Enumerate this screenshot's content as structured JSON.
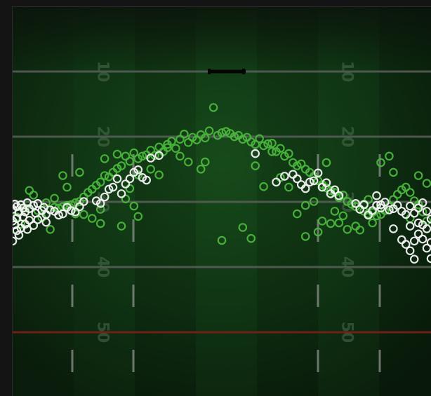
{
  "chart_data": {
    "type": "scatter",
    "title": "",
    "xlabel": "",
    "ylabel": "",
    "field": {
      "yard_line_labels": [
        {
          "text": "10",
          "yard": 10
        },
        {
          "text": "20",
          "yard": 20
        },
        {
          "text": "30",
          "yard": 30
        },
        {
          "text": "40",
          "yard": 40
        },
        {
          "text": "50",
          "yard": 50
        }
      ],
      "highlight_yard": 40,
      "colors": {
        "turf": "#0f2a12",
        "turf_dark": "#0b1a0c",
        "line": "#5b5f5b",
        "highlight_line": "#7a1f1a",
        "hash": "#8c918c",
        "frame": "#1b1b1b"
      }
    },
    "xlim": [
      0,
      100
    ],
    "ylim": [
      0,
      60
    ],
    "series": [
      {
        "color": "#4ab53c",
        "points": [
          [
            48,
            15.5
          ],
          [
            50,
            19.4
          ],
          [
            51,
            19.2
          ],
          [
            49,
            19.8
          ],
          [
            47,
            19.1
          ],
          [
            52,
            19.5
          ],
          [
            53,
            20.0
          ],
          [
            46,
            20.2
          ],
          [
            45,
            19.7
          ],
          [
            54,
            19.8
          ],
          [
            55,
            20.4
          ],
          [
            44,
            20.5
          ],
          [
            56,
            20.1
          ],
          [
            43,
            20.1
          ],
          [
            57,
            20.8
          ],
          [
            42,
            20.9
          ],
          [
            41,
            19.6
          ],
          [
            40,
            20.4
          ],
          [
            58,
            21.2
          ],
          [
            59,
            20.3
          ],
          [
            60,
            21.4
          ],
          [
            61,
            21.1
          ],
          [
            62,
            21.0
          ],
          [
            39,
            21.8
          ],
          [
            38,
            20.7
          ],
          [
            37,
            21.7
          ],
          [
            36,
            22.3
          ],
          [
            35,
            21.6
          ],
          [
            34,
            22.9
          ],
          [
            33,
            22.1
          ],
          [
            32,
            22.8
          ],
          [
            31,
            23.0
          ],
          [
            30,
            23.4
          ],
          [
            29,
            22.5
          ],
          [
            28,
            23.8
          ],
          [
            27,
            23.0
          ],
          [
            26,
            24.5
          ],
          [
            25,
            24.9
          ],
          [
            24,
            25.5
          ],
          [
            23,
            26.2
          ],
          [
            22,
            26.0
          ],
          [
            21,
            27.0
          ],
          [
            20,
            27.5
          ],
          [
            19,
            28.1
          ],
          [
            18,
            28.6
          ],
          [
            17,
            29.3
          ],
          [
            16,
            30.0
          ],
          [
            15,
            30.2
          ],
          [
            14,
            30.5
          ],
          [
            13,
            30.6
          ],
          [
            12,
            30.8
          ],
          [
            11,
            31.0
          ],
          [
            10,
            30.9
          ],
          [
            63,
            22.3
          ],
          [
            64,
            21.8
          ],
          [
            65,
            23.0
          ],
          [
            66,
            22.6
          ],
          [
            67,
            24.0
          ],
          [
            68,
            24.5
          ],
          [
            69,
            24.2
          ],
          [
            70,
            25.0
          ],
          [
            71,
            25.5
          ],
          [
            72,
            26.1
          ],
          [
            73,
            26.8
          ],
          [
            74,
            27.4
          ],
          [
            75,
            27.9
          ],
          [
            76,
            28.3
          ],
          [
            77,
            28.6
          ],
          [
            78,
            29.4
          ],
          [
            79,
            29.0
          ],
          [
            80,
            30.0
          ],
          [
            81,
            30.4
          ],
          [
            82,
            30.8
          ],
          [
            83,
            31.2
          ],
          [
            84,
            31.5
          ],
          [
            85,
            31.9
          ],
          [
            86,
            31.7
          ],
          [
            87,
            32.2
          ],
          [
            88,
            32.0
          ],
          [
            89,
            31.4
          ],
          [
            90,
            30.8
          ],
          [
            91,
            29.7
          ],
          [
            92,
            28.9
          ],
          [
            93,
            28.2
          ],
          [
            94,
            27.8
          ],
          [
            95,
            28.6
          ],
          [
            96,
            29.9
          ],
          [
            97,
            30.5
          ],
          [
            98,
            31.6
          ],
          [
            99,
            33.0
          ],
          [
            12,
            26.0
          ],
          [
            15,
            31.9
          ],
          [
            17,
            32.0
          ],
          [
            19,
            32.6
          ],
          [
            21,
            33.4
          ],
          [
            21,
            31.2
          ],
          [
            26,
            33.8
          ],
          [
            27,
            29.6
          ],
          [
            28,
            28.0
          ],
          [
            29,
            30.7
          ],
          [
            30,
            32.3
          ],
          [
            33,
            25.0
          ],
          [
            35,
            25.9
          ],
          [
            37,
            21.2
          ],
          [
            40,
            23.0
          ],
          [
            42,
            23.9
          ],
          [
            45,
            25.0
          ],
          [
            55,
            34.0
          ],
          [
            58,
            24.5
          ],
          [
            60,
            27.7
          ],
          [
            64,
            26.3
          ],
          [
            66,
            27.8
          ],
          [
            68,
            31.9
          ],
          [
            70,
            30.6
          ],
          [
            72,
            30.0
          ],
          [
            73,
            34.7
          ],
          [
            74,
            33.0
          ],
          [
            77,
            31.5
          ],
          [
            78,
            33.3
          ],
          [
            79,
            32.2
          ],
          [
            80,
            34.3
          ],
          [
            83,
            34.4
          ],
          [
            84,
            30.4
          ],
          [
            86,
            33.3
          ],
          [
            90,
            23.0
          ],
          [
            91,
            25.5
          ],
          [
            95,
            32.6
          ],
          [
            99,
            27.2
          ],
          [
            97,
            26.0
          ],
          [
            88,
            24.0
          ],
          [
            85,
            29.7
          ],
          [
            82,
            33.8
          ],
          [
            76,
            33.4
          ],
          [
            75,
            24.0
          ],
          [
            70,
            35.4
          ],
          [
            62,
            22.3
          ],
          [
            57,
            35.7
          ],
          [
            50,
            36.0
          ],
          [
            46,
            23.9
          ],
          [
            30,
            25.9
          ],
          [
            25,
            22.7
          ],
          [
            22,
            23.4
          ],
          [
            16,
            25.5
          ],
          [
            13,
            27.8
          ],
          [
            10,
            29.5
          ],
          [
            8,
            30.2
          ],
          [
            6,
            31.4
          ],
          [
            5,
            29.0
          ],
          [
            3,
            31.0
          ],
          [
            2,
            33.5
          ],
          [
            1,
            32.4
          ],
          [
            4,
            28.3
          ],
          [
            7,
            32.5
          ],
          [
            9,
            34.3
          ]
        ]
      },
      {
        "color": "#f2f2f2",
        "points": [
          [
            0,
            31.2
          ],
          [
            0.5,
            30.4
          ],
          [
            1,
            30.8
          ],
          [
            1.5,
            31.7
          ],
          [
            2,
            30.5
          ],
          [
            2.5,
            31.0
          ],
          [
            3,
            31.6
          ],
          [
            3.5,
            30.2
          ],
          [
            4,
            31.1
          ],
          [
            5,
            30.6
          ],
          [
            5.5,
            31.8
          ],
          [
            6,
            30.3
          ],
          [
            7,
            31.4
          ],
          [
            7.5,
            30.9
          ],
          [
            8,
            32.0
          ],
          [
            9,
            31.3
          ],
          [
            10,
            31.5
          ],
          [
            11,
            32.1
          ],
          [
            12,
            31.9
          ],
          [
            13,
            30.9
          ],
          [
            14,
            31.4
          ],
          [
            15,
            31.6
          ],
          [
            16,
            30.8
          ],
          [
            17,
            30.0
          ],
          [
            0,
            33.0
          ],
          [
            0.5,
            33.6
          ],
          [
            1,
            34.5
          ],
          [
            1.5,
            35.2
          ],
          [
            0,
            36.1
          ],
          [
            2,
            34.1
          ],
          [
            3,
            33.5
          ],
          [
            4,
            32.9
          ],
          [
            5,
            33.7
          ],
          [
            6,
            32.8
          ],
          [
            8,
            33.2
          ],
          [
            1,
            32.6
          ],
          [
            2.5,
            32.4
          ],
          [
            3.5,
            34.3
          ],
          [
            20,
            29.9
          ],
          [
            21,
            30.3
          ],
          [
            22,
            29.3
          ],
          [
            23,
            28.1
          ],
          [
            24,
            27.8
          ],
          [
            25,
            26.5
          ],
          [
            26,
            28.8
          ],
          [
            27,
            27.3
          ],
          [
            28,
            26.5
          ],
          [
            29,
            25.5
          ],
          [
            30,
            25.1
          ],
          [
            31,
            26.3
          ],
          [
            32,
            26.7
          ],
          [
            33,
            23.3
          ],
          [
            35,
            22.9
          ],
          [
            58,
            22.6
          ],
          [
            63,
            27.0
          ],
          [
            65,
            26.1
          ],
          [
            67,
            25.8
          ],
          [
            68,
            26.5
          ],
          [
            69,
            27.4
          ],
          [
            70,
            28.0
          ],
          [
            71,
            27.0
          ],
          [
            72,
            26.8
          ],
          [
            73,
            25.6
          ],
          [
            74,
            27.8
          ],
          [
            75,
            27.1
          ],
          [
            76,
            28.8
          ],
          [
            77,
            28.2
          ],
          [
            78,
            29.1
          ],
          [
            82,
            30.3
          ],
          [
            83,
            31.2
          ],
          [
            84,
            30.5
          ],
          [
            85,
            32.1
          ],
          [
            86,
            31.4
          ],
          [
            87,
            30.6
          ],
          [
            88,
            31.0
          ],
          [
            89,
            30.1
          ],
          [
            90,
            31.3
          ],
          [
            91,
            31.1
          ],
          [
            92,
            30.6
          ],
          [
            93,
            31.5
          ],
          [
            94,
            32.0
          ],
          [
            95,
            30.7
          ],
          [
            96,
            31.8
          ],
          [
            97,
            31.0
          ],
          [
            98,
            30.2
          ],
          [
            99,
            31.5
          ],
          [
            100,
            32.7
          ],
          [
            99,
            34.2
          ],
          [
            98,
            33.6
          ],
          [
            97,
            35.0
          ],
          [
            96,
            36.1
          ],
          [
            95,
            37.6
          ],
          [
            94,
            36.6
          ],
          [
            91,
            34.2
          ],
          [
            93,
            35.9
          ],
          [
            100,
            36.3
          ],
          [
            99,
            37.2
          ],
          [
            98,
            35.8
          ],
          [
            97,
            33.3
          ],
          [
            96,
            38.9
          ],
          [
            95,
            33.8
          ],
          [
            100,
            38.8
          ],
          [
            88,
            30.5
          ],
          [
            87,
            29.1
          ]
        ]
      }
    ]
  }
}
